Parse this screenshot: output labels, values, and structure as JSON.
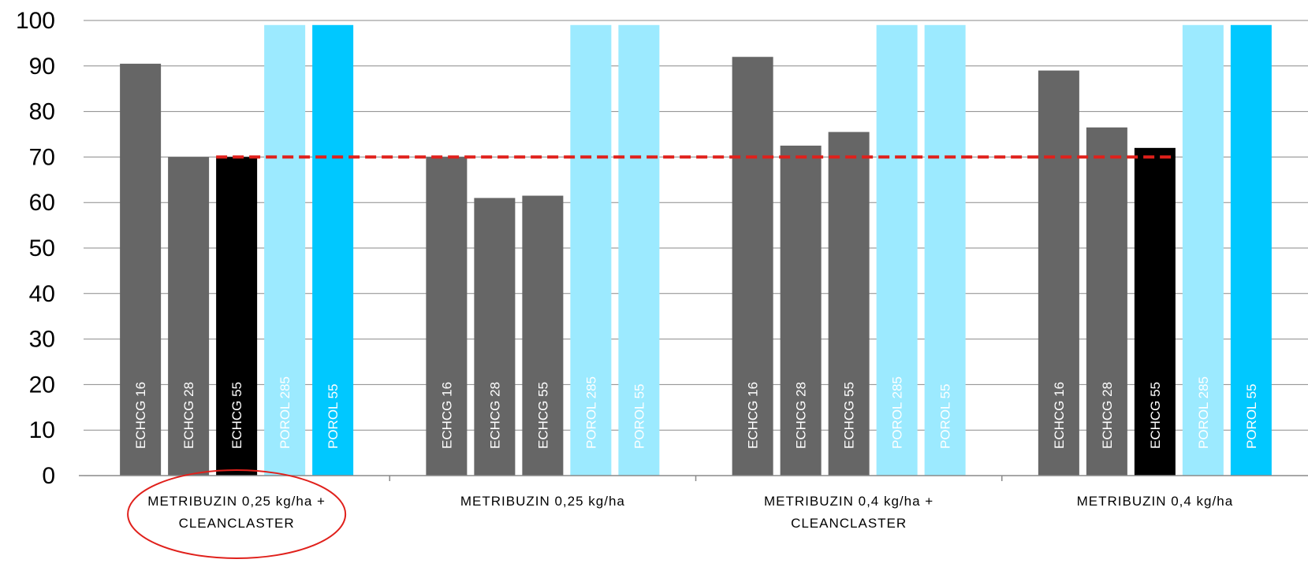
{
  "chart_data": {
    "type": "bar",
    "ylim": [
      0,
      100
    ],
    "yticks": [
      "0",
      "10",
      "20",
      "30",
      "40",
      "50",
      "60",
      "70",
      "80",
      "90",
      "100"
    ],
    "grid": true,
    "reference_line": {
      "value": 70,
      "color": "#e0201b",
      "style": "dashed"
    },
    "groups": [
      {
        "label_lines": [
          "METRIBUZIN 0,25 kg/ha +",
          "CLEANCLASTER"
        ],
        "highlighted": true,
        "bars": [
          {
            "label": "ECHCG 16",
            "value": 90.5,
            "color": "#666666",
            "label_color": "#ffffff"
          },
          {
            "label": "ECHCG 28",
            "value": 70,
            "color": "#666666",
            "label_color": "#ffffff"
          },
          {
            "label": "ECHCG 55",
            "value": 70,
            "color": "#000000",
            "label_color": "#ffffff"
          },
          {
            "label": "POROL 285",
            "value": 99,
            "color": "#9ceaff",
            "label_color": "#ffffff"
          },
          {
            "label": "POROL 55",
            "value": 99,
            "color": "#00c8ff",
            "label_color": "#ffffff"
          }
        ]
      },
      {
        "label_lines": [
          "METRIBUZIN 0,25 kg/ha"
        ],
        "highlighted": false,
        "bars": [
          {
            "label": "ECHCG 16",
            "value": 70,
            "color": "#666666",
            "label_color": "#ffffff"
          },
          {
            "label": "ECHCG 28",
            "value": 61,
            "color": "#666666",
            "label_color": "#ffffff"
          },
          {
            "label": "ECHCG 55",
            "value": 61.5,
            "color": "#666666",
            "label_color": "#ffffff"
          },
          {
            "label": "POROL 285",
            "value": 99,
            "color": "#9ceaff",
            "label_color": "#ffffff"
          },
          {
            "label": "POROL 55",
            "value": 99,
            "color": "#9ceaff",
            "label_color": "#ffffff"
          }
        ]
      },
      {
        "label_lines": [
          "METRIBUZIN 0,4 kg/ha +",
          "CLEANCLASTER"
        ],
        "highlighted": false,
        "bars": [
          {
            "label": "ECHCG 16",
            "value": 92,
            "color": "#666666",
            "label_color": "#ffffff"
          },
          {
            "label": "ECHCG 28",
            "value": 72.5,
            "color": "#666666",
            "label_color": "#ffffff"
          },
          {
            "label": "ECHCG 55",
            "value": 75.5,
            "color": "#666666",
            "label_color": "#ffffff"
          },
          {
            "label": "POROL 285",
            "value": 99,
            "color": "#9ceaff",
            "label_color": "#ffffff"
          },
          {
            "label": "POROL 55",
            "value": 99,
            "color": "#9ceaff",
            "label_color": "#ffffff"
          }
        ]
      },
      {
        "label_lines": [
          "METRIBUZIN 0,4 kg/ha"
        ],
        "highlighted": false,
        "bars": [
          {
            "label": "ECHCG 16",
            "value": 89,
            "color": "#666666",
            "label_color": "#ffffff"
          },
          {
            "label": "ECHCG 28",
            "value": 76.5,
            "color": "#666666",
            "label_color": "#ffffff"
          },
          {
            "label": "ECHCG 55",
            "value": 72,
            "color": "#000000",
            "label_color": "#ffffff"
          },
          {
            "label": "POROL 285",
            "value": 99,
            "color": "#9ceaff",
            "label_color": "#ffffff"
          },
          {
            "label": "POROL 55",
            "value": 99,
            "color": "#00c8ff",
            "label_color": "#ffffff"
          }
        ]
      }
    ]
  }
}
